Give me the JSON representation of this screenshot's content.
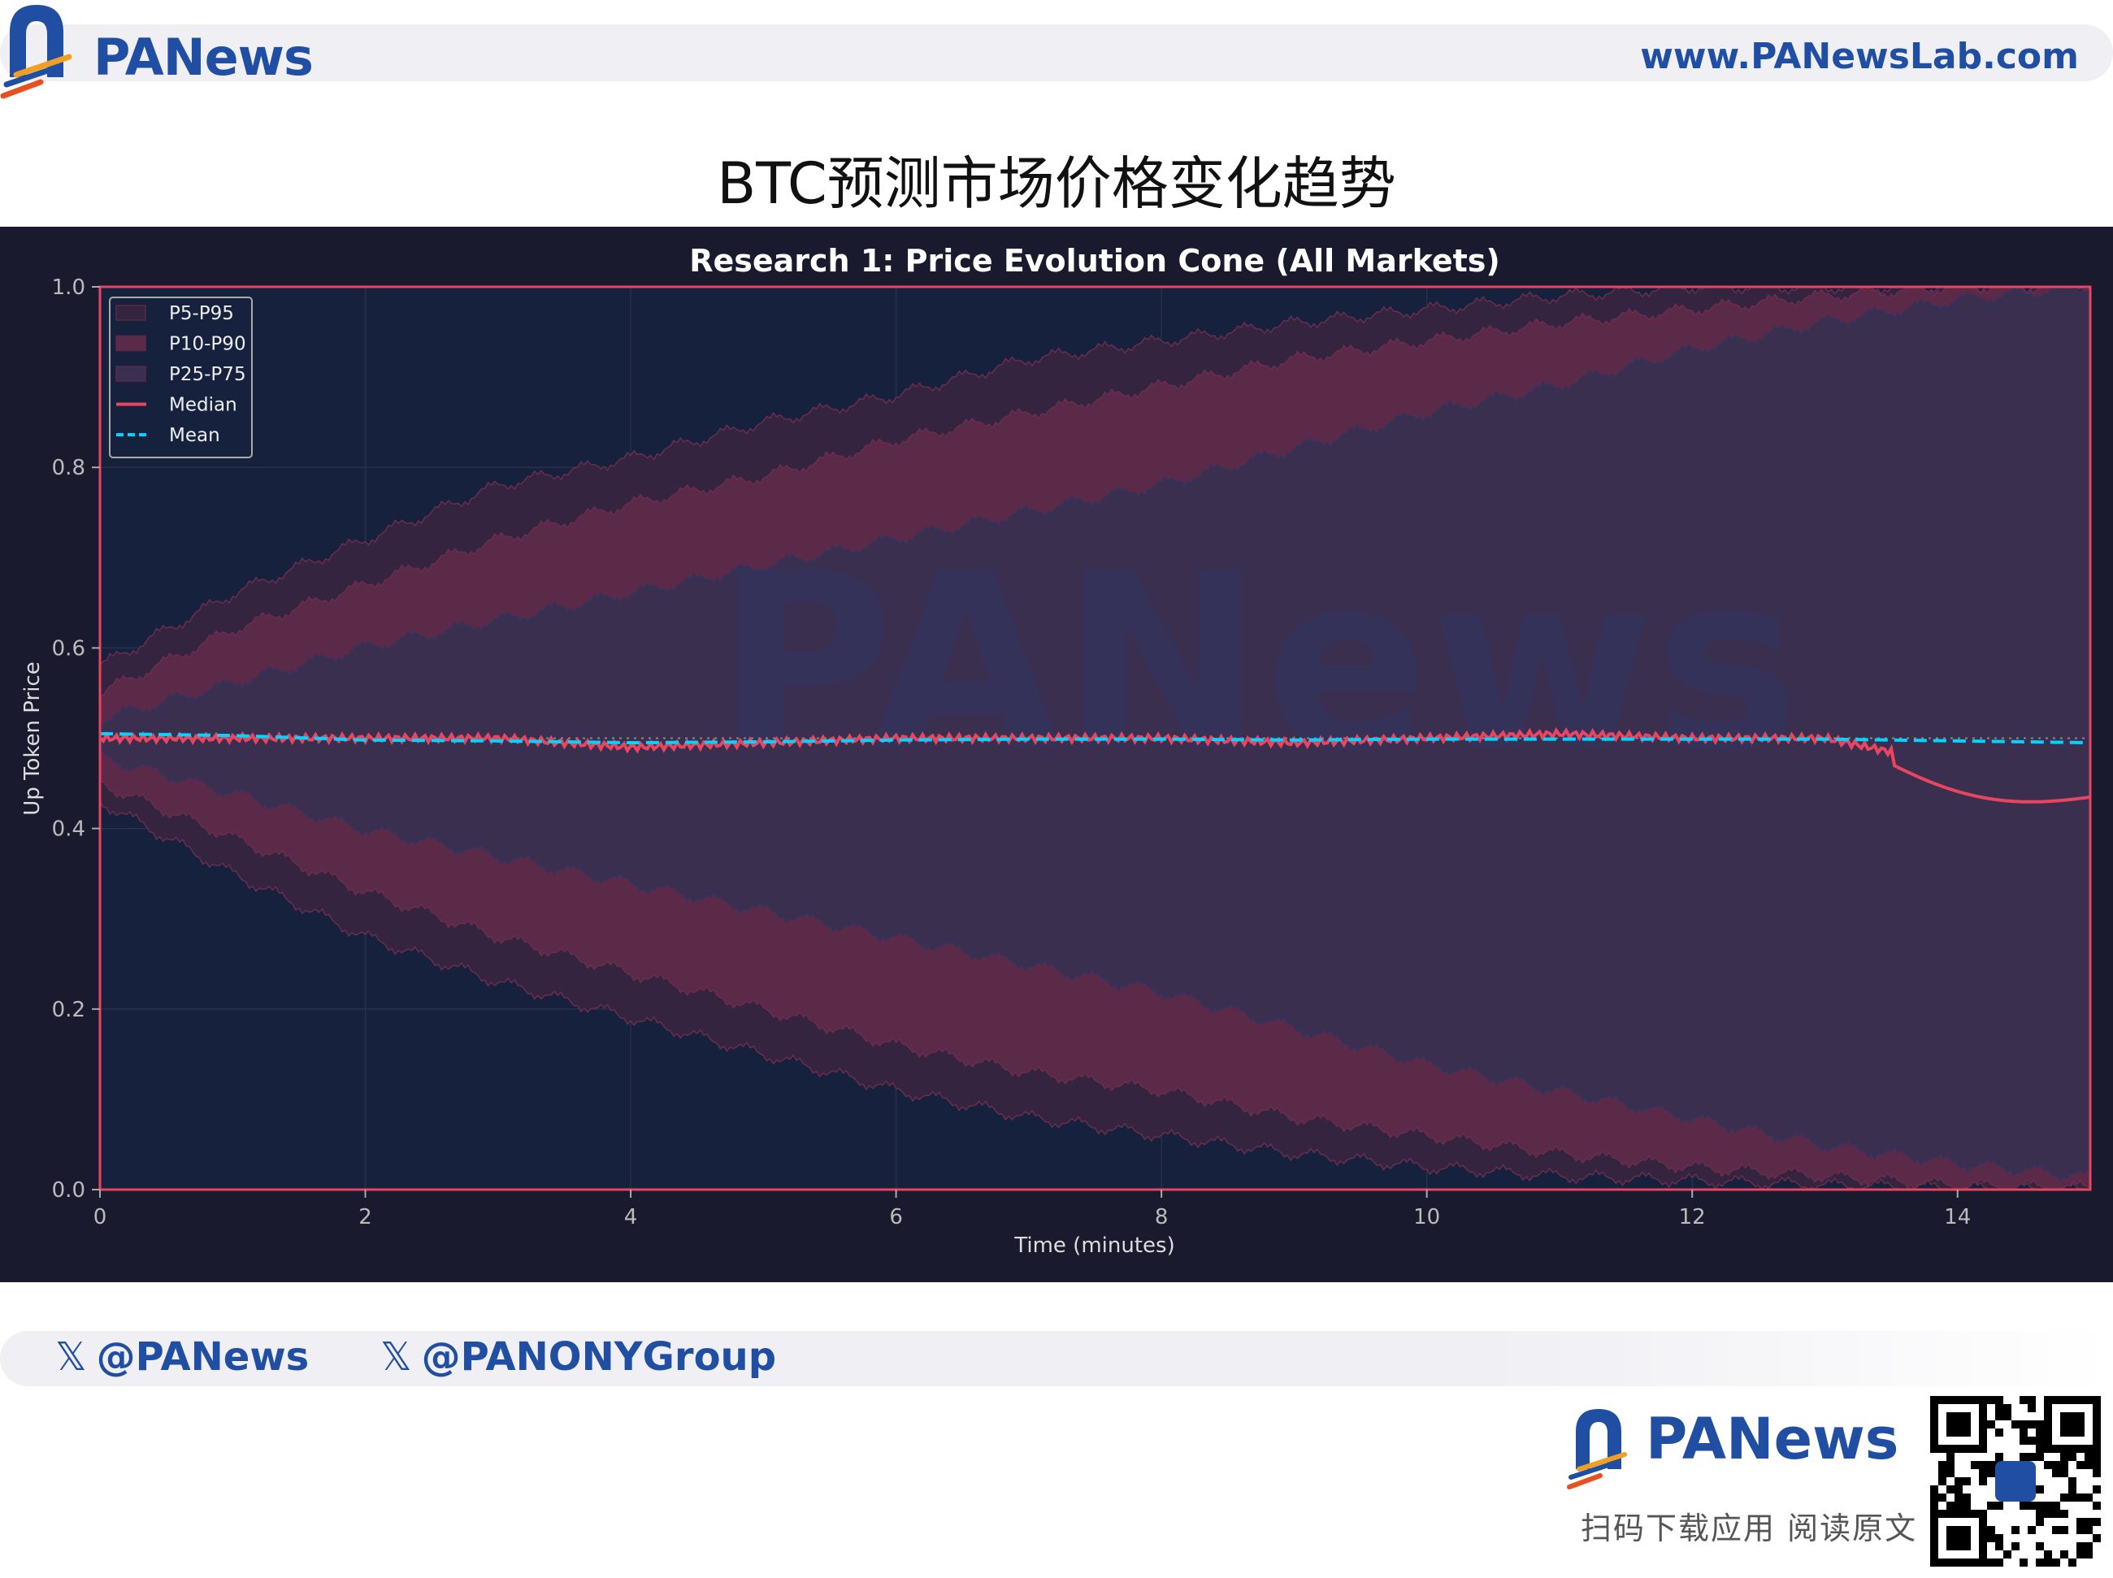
{
  "header": {
    "brand": "PANews",
    "url": "www.PANewsLab.com",
    "title": "BTC预测市场价格变化趋势"
  },
  "footer": {
    "handles": [
      "@PANews",
      "@PANONYGroup"
    ],
    "brand": "PANews",
    "caption": "扫码下载应用  阅读原文",
    "icons": [
      "x-logo-icon",
      "qr-code-icon",
      "panews-logo-icon"
    ]
  },
  "watermark": "PANews",
  "colors": {
    "brand_blue": "#1f4ea3",
    "panel_bg": "#1a1a2e",
    "plot_bg": "#16213e",
    "p5_p95": "#35243f",
    "p10_p90": "#5a2a48",
    "p25_p75": "#3b2f50",
    "median": "#e94560",
    "mean": "#00d4ff"
  },
  "chart_data": {
    "type": "area",
    "title": "Research 1: Price Evolution Cone (All Markets)",
    "xlabel": "Time (minutes)",
    "ylabel": "Up Token Price",
    "xlim": [
      0,
      15
    ],
    "ylim": [
      0,
      1
    ],
    "xticks": [
      "0",
      "2",
      "4",
      "6",
      "8",
      "10",
      "12",
      "14"
    ],
    "yticks": [
      "0.0",
      "0.2",
      "0.4",
      "0.6",
      "0.8",
      "1.0"
    ],
    "grid": true,
    "legend_position": "top-left",
    "reference_line": 0.5,
    "x": [
      0,
      1,
      2,
      3,
      4,
      5,
      6,
      7,
      8,
      9,
      10,
      11,
      12,
      13,
      14,
      15
    ],
    "bands": [
      {
        "name": "P5-P95",
        "lower": [
          0.43,
          0.35,
          0.28,
          0.23,
          0.19,
          0.15,
          0.11,
          0.08,
          0.06,
          0.04,
          0.025,
          0.015,
          0.01,
          0.005,
          0.002,
          0.0
        ],
        "upper": [
          0.58,
          0.66,
          0.72,
          0.78,
          0.81,
          0.85,
          0.88,
          0.92,
          0.94,
          0.96,
          0.975,
          0.99,
          1.0,
          1.0,
          1.0,
          1.0
        ]
      },
      {
        "name": "P10-P90",
        "lower": [
          0.45,
          0.39,
          0.33,
          0.28,
          0.24,
          0.2,
          0.16,
          0.13,
          0.11,
          0.08,
          0.06,
          0.04,
          0.025,
          0.015,
          0.005,
          0.002
        ],
        "upper": [
          0.55,
          0.62,
          0.67,
          0.72,
          0.76,
          0.79,
          0.83,
          0.86,
          0.89,
          0.92,
          0.94,
          0.96,
          0.975,
          0.99,
          1.0,
          1.0
        ]
      },
      {
        "name": "P25-P75",
        "lower": [
          0.48,
          0.44,
          0.4,
          0.37,
          0.34,
          0.31,
          0.28,
          0.25,
          0.22,
          0.18,
          0.14,
          0.11,
          0.08,
          0.05,
          0.03,
          0.015
        ],
        "upper": [
          0.52,
          0.56,
          0.6,
          0.63,
          0.66,
          0.69,
          0.72,
          0.75,
          0.78,
          0.82,
          0.86,
          0.89,
          0.93,
          0.96,
          0.985,
          1.0
        ]
      }
    ],
    "series": [
      {
        "name": "Median",
        "values": [
          0.5,
          0.5,
          0.5,
          0.5,
          0.49,
          0.495,
          0.5,
          0.5,
          0.5,
          0.495,
          0.5,
          0.505,
          0.5,
          0.5,
          0.47,
          0.44
        ]
      },
      {
        "name": "Mean",
        "values": [
          0.505,
          0.503,
          0.498,
          0.497,
          0.495,
          0.496,
          0.498,
          0.499,
          0.499,
          0.498,
          0.499,
          0.499,
          0.499,
          0.499,
          0.497,
          0.495
        ]
      }
    ]
  }
}
